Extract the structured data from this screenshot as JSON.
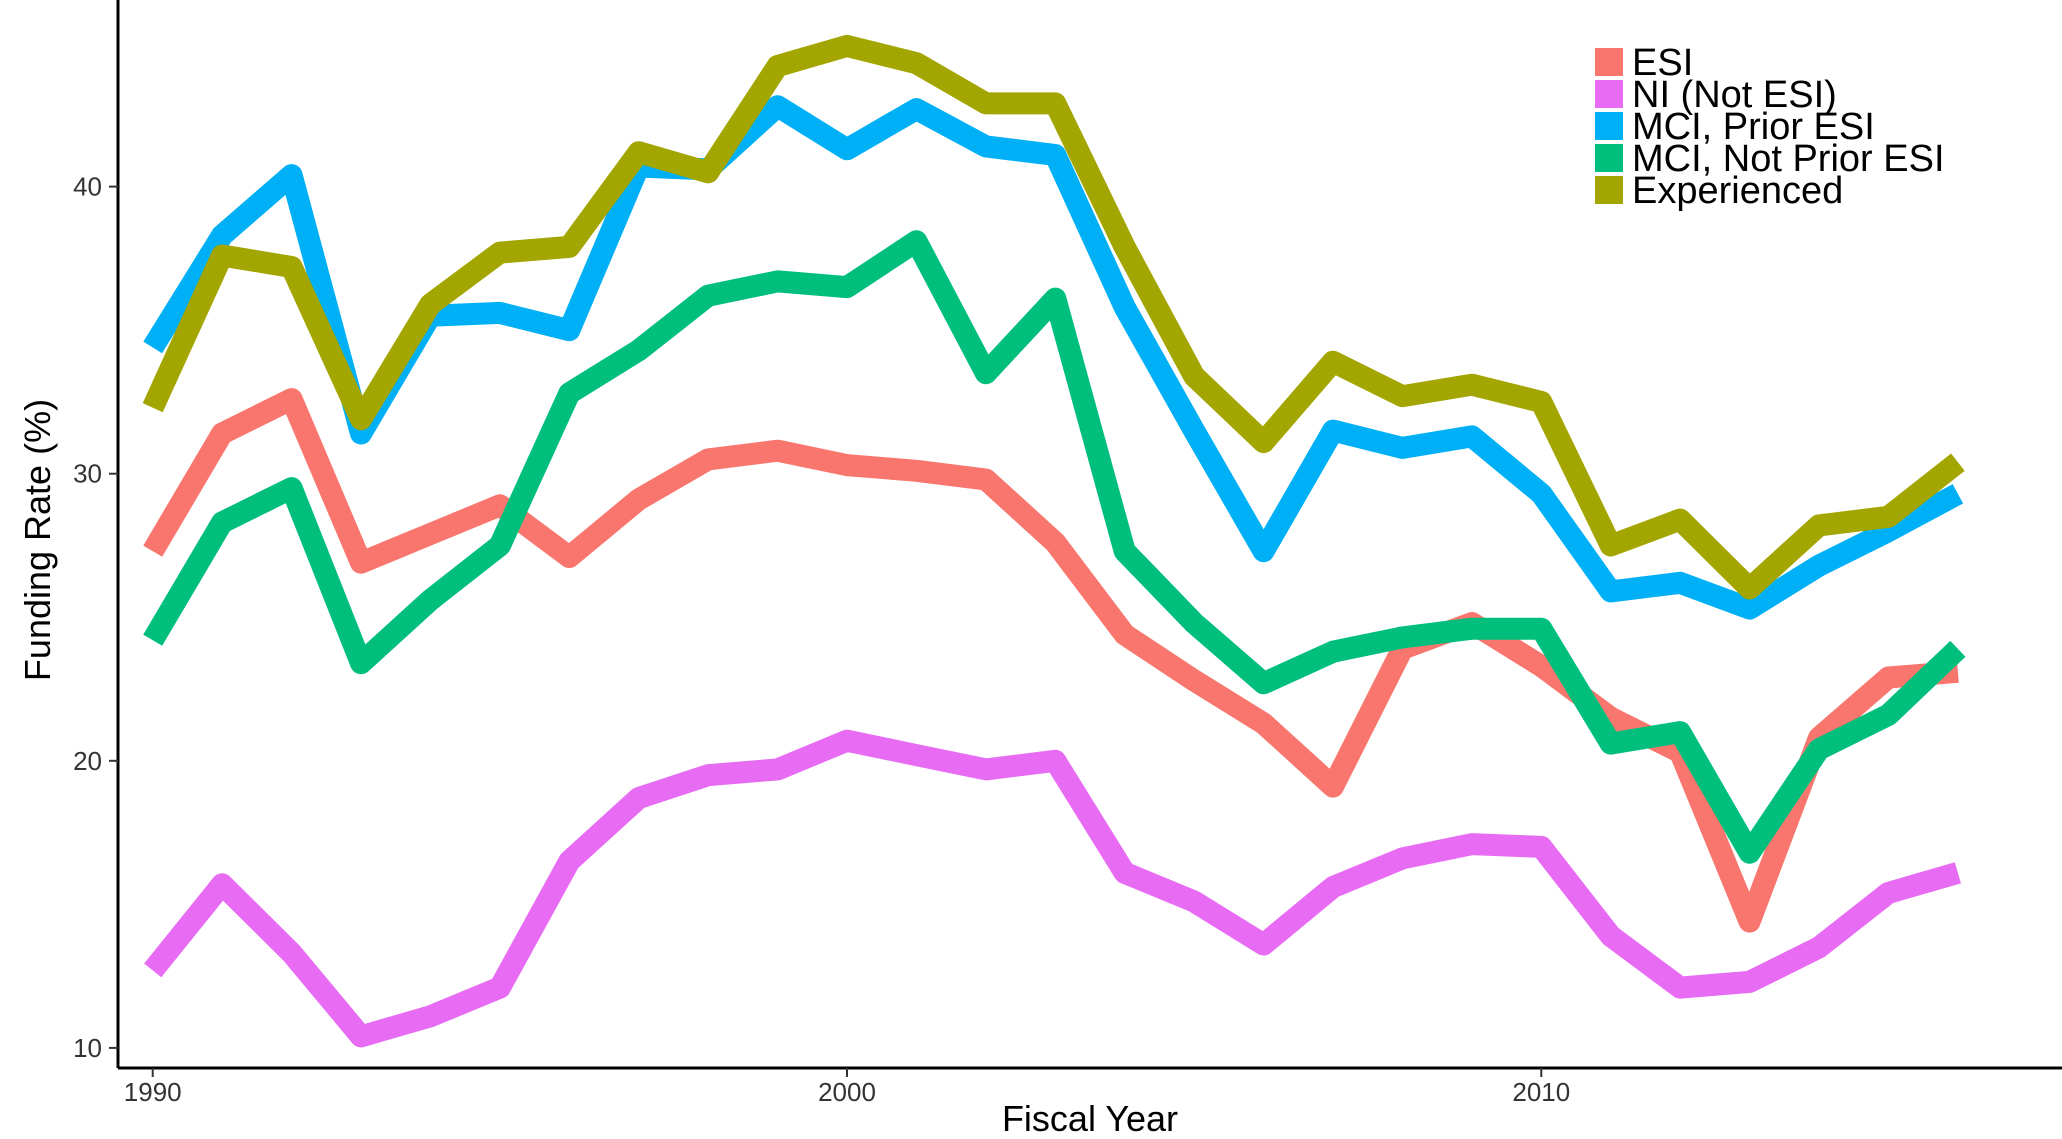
{
  "chart_data": {
    "type": "line",
    "title": "",
    "xlabel": "Fiscal Year",
    "ylabel": "Funding Rate (%)",
    "xlim": [
      1989.5,
      2017.5
    ],
    "ylim": [
      9.3,
      46.5
    ],
    "x_ticks": [
      1990,
      2000,
      2010
    ],
    "y_ticks": [
      10,
      20,
      30,
      40
    ],
    "grid": false,
    "legend_position": "top-right",
    "x": [
      1990,
      1991,
      1992,
      1993,
      1994,
      1995,
      1996,
      1997,
      1998,
      1999,
      2000,
      2001,
      2002,
      2003,
      2004,
      2005,
      2006,
      2007,
      2008,
      2009,
      2010,
      2011,
      2012,
      2013,
      2014,
      2015,
      2016
    ],
    "series": [
      {
        "name": "ESI",
        "color": "#F8766D",
        "values": [
          27.3,
          31.4,
          32.6,
          26.9,
          27.9,
          28.9,
          27.1,
          29.1,
          30.5,
          30.8,
          30.3,
          30.1,
          29.8,
          27.6,
          24.4,
          22.8,
          21.3,
          19.1,
          23.9,
          24.8,
          23.3,
          21.5,
          20.3,
          14.4,
          20.8,
          22.9,
          23.1
        ]
      },
      {
        "name": "NI (Not ESI)",
        "color": "#E76BF3",
        "values": [
          12.7,
          15.7,
          13.3,
          10.4,
          11.1,
          12.1,
          16.5,
          18.7,
          19.5,
          19.7,
          20.7,
          20.2,
          19.7,
          20.0,
          16.1,
          15.1,
          13.6,
          15.6,
          16.6,
          17.1,
          17.0,
          13.9,
          12.1,
          12.3,
          13.5,
          15.4,
          16.1
        ]
      },
      {
        "name": "MCI, Prior ESI",
        "color": "#00B0F6",
        "values": [
          34.4,
          38.3,
          40.4,
          31.4,
          35.5,
          35.6,
          35.0,
          40.7,
          40.6,
          42.8,
          41.3,
          42.7,
          41.4,
          41.1,
          35.8,
          31.5,
          27.3,
          31.5,
          30.9,
          31.3,
          29.3,
          25.9,
          26.2,
          25.3,
          26.8,
          28.0,
          29.3
        ]
      },
      {
        "name": "MCI, Not Prior ESI",
        "color": "#00BF7D",
        "values": [
          24.2,
          28.3,
          29.5,
          23.4,
          25.6,
          27.5,
          32.8,
          34.3,
          36.2,
          36.7,
          36.5,
          38.1,
          33.5,
          36.1,
          27.3,
          24.8,
          22.7,
          23.8,
          24.3,
          24.6,
          24.6,
          20.6,
          21.0,
          16.8,
          20.4,
          21.6,
          23.9
        ]
      },
      {
        "name": "Experienced",
        "color": "#A3A500",
        "values": [
          32.3,
          37.6,
          37.2,
          31.9,
          35.9,
          37.7,
          37.9,
          41.2,
          40.5,
          44.2,
          44.9,
          44.3,
          42.9,
          42.9,
          37.9,
          33.4,
          31.1,
          33.9,
          32.7,
          33.1,
          32.5,
          27.5,
          28.4,
          26.0,
          28.2,
          28.5,
          30.4
        ]
      }
    ]
  }
}
